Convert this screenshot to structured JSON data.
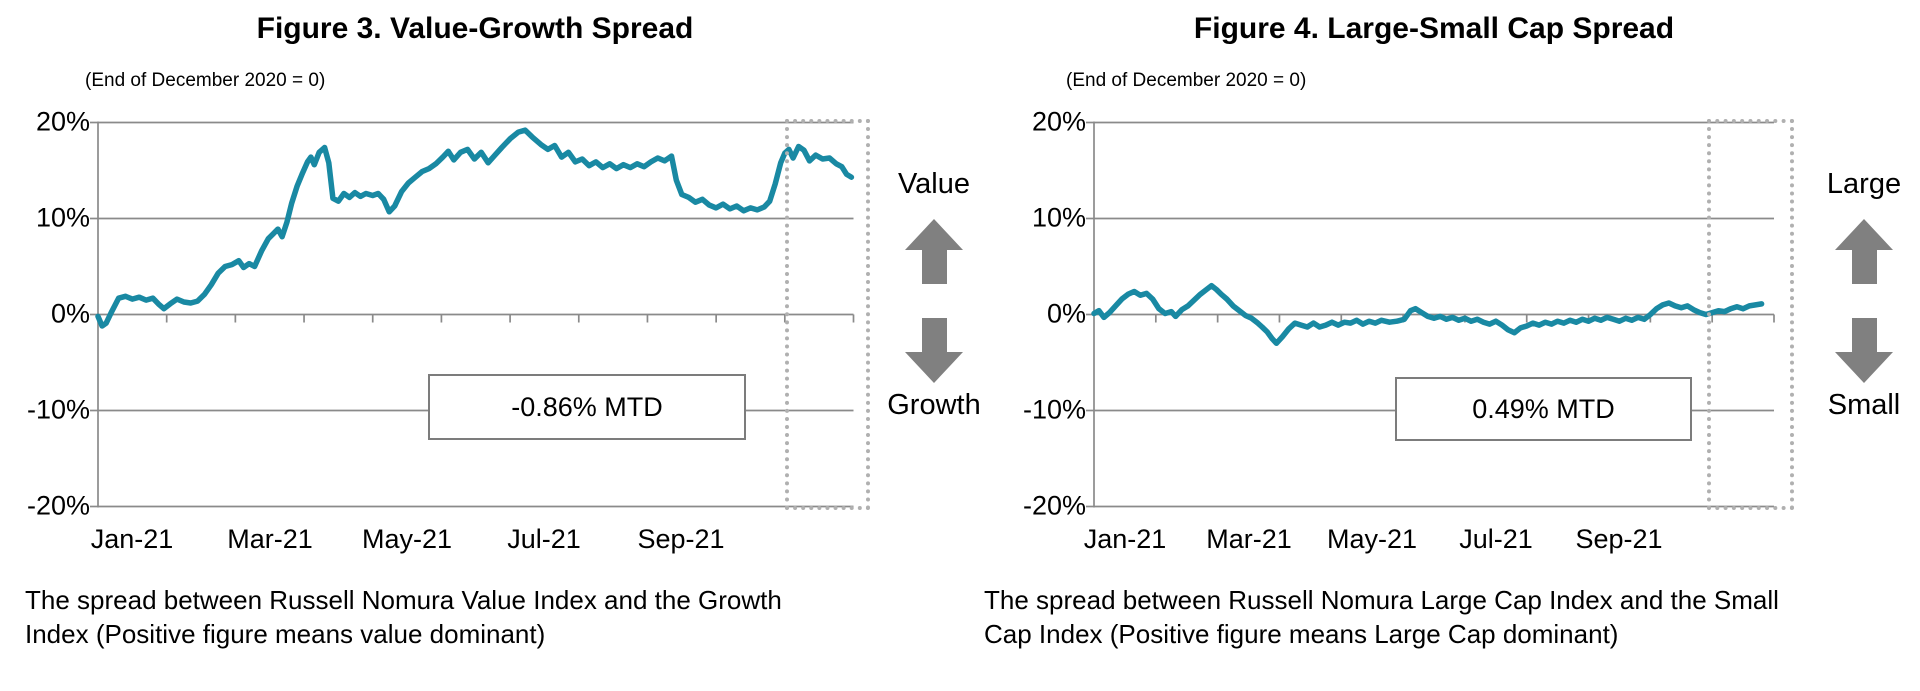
{
  "figures": [
    {
      "title": "Figure 3. Value-Growth Spread",
      "subtitle": "(End of December 2020 = 0)",
      "y_labels": [
        "20%",
        "10%",
        "0%",
        "-10%",
        "-20%"
      ],
      "x_labels": [
        "Jan-21",
        "Mar-21",
        "May-21",
        "Jul-21",
        "Sep-21"
      ],
      "annotation": "-0.86% MTD",
      "side_top_label": "Value",
      "side_bottom_label": "Growth",
      "caption_lines": [
        "The spread between Russell Nomura Value Index and the Growth",
        "Index (Positive figure means value dominant)"
      ]
    },
    {
      "title": "Figure 4. Large-Small Cap Spread",
      "subtitle": "(End of December 2020 = 0)",
      "y_labels": [
        "20%",
        "10%",
        "0%",
        "-10%",
        "-20%"
      ],
      "x_labels": [
        "Jan-21",
        "Mar-21",
        "May-21",
        "Jul-21",
        "Sep-21"
      ],
      "annotation": "0.49% MTD",
      "side_top_label": "Large",
      "side_bottom_label": "Small",
      "caption_lines": [
        "The spread between Russell Nomura Large Cap Index and the Small",
        "Cap Index (Positive figure means Large Cap dominant)"
      ]
    }
  ],
  "colors": {
    "line": "#1989a3",
    "grid": "#8a8a8a",
    "axis": "#8a8a8a",
    "arrow": "#808080",
    "dotted_box": "#b0b0b0",
    "annotation_border": "#7c7c7c",
    "text": "#000000"
  },
  "chart_data": [
    {
      "type": "line",
      "title": "Figure 3. Value-Growth Spread",
      "subtitle": "(End of December 2020 = 0)",
      "xlabel": "",
      "ylabel": "",
      "x_unit": "months since 2021-01-01",
      "x_tick_labels": [
        "Jan-21",
        "Mar-21",
        "May-21",
        "Jul-21",
        "Sep-21"
      ],
      "xlim": [
        0,
        11
      ],
      "ylim": [
        -20,
        20
      ],
      "y_ticks_pct": [
        20,
        10,
        0,
        -10,
        -20
      ],
      "grid": "horizontal",
      "legend": "none",
      "annotation": "-0.86% MTD",
      "highlight_region_months": [
        10.0,
        11.2
      ],
      "series": [
        {
          "name": "Value-Growth spread (%)",
          "points": [
            [
              0.0,
              -0.2
            ],
            [
              0.06,
              -1.2
            ],
            [
              0.12,
              -0.9
            ],
            [
              0.2,
              0.3
            ],
            [
              0.3,
              1.7
            ],
            [
              0.4,
              1.9
            ],
            [
              0.5,
              1.6
            ],
            [
              0.6,
              1.8
            ],
            [
              0.7,
              1.5
            ],
            [
              0.8,
              1.7
            ],
            [
              0.88,
              1.1
            ],
            [
              0.96,
              0.6
            ],
            [
              1.05,
              1.1
            ],
            [
              1.15,
              1.6
            ],
            [
              1.25,
              1.3
            ],
            [
              1.35,
              1.2
            ],
            [
              1.45,
              1.4
            ],
            [
              1.55,
              2.1
            ],
            [
              1.65,
              3.1
            ],
            [
              1.75,
              4.3
            ],
            [
              1.85,
              5.0
            ],
            [
              1.95,
              5.2
            ],
            [
              2.05,
              5.6
            ],
            [
              2.12,
              4.9
            ],
            [
              2.2,
              5.3
            ],
            [
              2.28,
              5.0
            ],
            [
              2.38,
              6.6
            ],
            [
              2.48,
              7.9
            ],
            [
              2.55,
              8.4
            ],
            [
              2.62,
              8.9
            ],
            [
              2.68,
              8.1
            ],
            [
              2.75,
              9.6
            ],
            [
              2.82,
              11.6
            ],
            [
              2.9,
              13.4
            ],
            [
              2.97,
              14.6
            ],
            [
              3.05,
              15.9
            ],
            [
              3.1,
              16.4
            ],
            [
              3.15,
              15.6
            ],
            [
              3.22,
              16.9
            ],
            [
              3.3,
              17.4
            ],
            [
              3.36,
              15.8
            ],
            [
              3.42,
              12.1
            ],
            [
              3.5,
              11.8
            ],
            [
              3.58,
              12.6
            ],
            [
              3.66,
              12.2
            ],
            [
              3.74,
              12.7
            ],
            [
              3.82,
              12.3
            ],
            [
              3.9,
              12.6
            ],
            [
              4.0,
              12.4
            ],
            [
              4.08,
              12.6
            ],
            [
              4.16,
              12.0
            ],
            [
              4.24,
              10.7
            ],
            [
              4.32,
              11.3
            ],
            [
              4.42,
              12.8
            ],
            [
              4.52,
              13.7
            ],
            [
              4.62,
              14.3
            ],
            [
              4.72,
              14.9
            ],
            [
              4.82,
              15.2
            ],
            [
              4.92,
              15.7
            ],
            [
              5.02,
              16.4
            ],
            [
              5.1,
              17.0
            ],
            [
              5.18,
              16.1
            ],
            [
              5.28,
              16.9
            ],
            [
              5.38,
              17.2
            ],
            [
              5.48,
              16.2
            ],
            [
              5.58,
              16.9
            ],
            [
              5.68,
              15.8
            ],
            [
              5.78,
              16.6
            ],
            [
              5.88,
              17.4
            ],
            [
              6.0,
              18.3
            ],
            [
              6.12,
              19.0
            ],
            [
              6.22,
              19.2
            ],
            [
              6.32,
              18.5
            ],
            [
              6.45,
              17.7
            ],
            [
              6.55,
              17.2
            ],
            [
              6.65,
              17.6
            ],
            [
              6.75,
              16.4
            ],
            [
              6.85,
              16.9
            ],
            [
              6.95,
              15.9
            ],
            [
              7.05,
              16.2
            ],
            [
              7.15,
              15.5
            ],
            [
              7.25,
              15.9
            ],
            [
              7.35,
              15.3
            ],
            [
              7.45,
              15.7
            ],
            [
              7.55,
              15.2
            ],
            [
              7.65,
              15.6
            ],
            [
              7.75,
              15.3
            ],
            [
              7.85,
              15.7
            ],
            [
              7.95,
              15.4
            ],
            [
              8.05,
              15.9
            ],
            [
              8.15,
              16.3
            ],
            [
              8.25,
              16.0
            ],
            [
              8.35,
              16.5
            ],
            [
              8.42,
              14.0
            ],
            [
              8.5,
              12.5
            ],
            [
              8.6,
              12.2
            ],
            [
              8.7,
              11.7
            ],
            [
              8.8,
              12.0
            ],
            [
              8.9,
              11.4
            ],
            [
              9.0,
              11.1
            ],
            [
              9.1,
              11.5
            ],
            [
              9.2,
              11.0
            ],
            [
              9.3,
              11.3
            ],
            [
              9.4,
              10.8
            ],
            [
              9.5,
              11.1
            ],
            [
              9.6,
              10.9
            ],
            [
              9.7,
              11.2
            ],
            [
              9.78,
              11.8
            ],
            [
              9.86,
              13.6
            ],
            [
              9.94,
              15.8
            ],
            [
              10.0,
              16.8
            ],
            [
              10.06,
              17.2
            ],
            [
              10.12,
              16.3
            ],
            [
              10.2,
              17.5
            ],
            [
              10.28,
              17.1
            ],
            [
              10.36,
              16.0
            ],
            [
              10.45,
              16.6
            ],
            [
              10.55,
              16.2
            ],
            [
              10.65,
              16.3
            ],
            [
              10.75,
              15.7
            ],
            [
              10.83,
              15.4
            ],
            [
              10.9,
              14.6
            ],
            [
              10.97,
              14.3
            ]
          ]
        }
      ]
    },
    {
      "type": "line",
      "title": "Figure 4. Large-Small Cap Spread",
      "subtitle": "(End of December 2020 = 0)",
      "xlabel": "",
      "ylabel": "",
      "x_unit": "months since 2021-01-01",
      "x_tick_labels": [
        "Jan-21",
        "Mar-21",
        "May-21",
        "Jul-21",
        "Sep-21"
      ],
      "xlim": [
        0,
        11
      ],
      "ylim": [
        -20,
        20
      ],
      "y_ticks_pct": [
        20,
        10,
        0,
        -10,
        -20
      ],
      "grid": "horizontal",
      "legend": "none",
      "annotation": "0.49% MTD",
      "highlight_region_months": [
        10.0,
        11.2
      ],
      "series": [
        {
          "name": "Large-Small Cap spread (%)",
          "points": [
            [
              0.0,
              0.1
            ],
            [
              0.08,
              0.4
            ],
            [
              0.16,
              -0.3
            ],
            [
              0.25,
              0.2
            ],
            [
              0.35,
              0.9
            ],
            [
              0.45,
              1.6
            ],
            [
              0.55,
              2.1
            ],
            [
              0.65,
              2.4
            ],
            [
              0.75,
              2.0
            ],
            [
              0.85,
              2.2
            ],
            [
              0.95,
              1.6
            ],
            [
              1.05,
              0.6
            ],
            [
              1.15,
              0.1
            ],
            [
              1.25,
              0.3
            ],
            [
              1.32,
              -0.2
            ],
            [
              1.42,
              0.5
            ],
            [
              1.52,
              0.9
            ],
            [
              1.62,
              1.5
            ],
            [
              1.72,
              2.1
            ],
            [
              1.82,
              2.6
            ],
            [
              1.9,
              3.0
            ],
            [
              1.98,
              2.6
            ],
            [
              2.06,
              2.1
            ],
            [
              2.15,
              1.6
            ],
            [
              2.25,
              0.9
            ],
            [
              2.35,
              0.4
            ],
            [
              2.45,
              -0.1
            ],
            [
              2.55,
              -0.4
            ],
            [
              2.65,
              -0.9
            ],
            [
              2.72,
              -1.3
            ],
            [
              2.8,
              -1.8
            ],
            [
              2.88,
              -2.5
            ],
            [
              2.95,
              -3.0
            ],
            [
              3.05,
              -2.3
            ],
            [
              3.15,
              -1.5
            ],
            [
              3.25,
              -0.9
            ],
            [
              3.35,
              -1.1
            ],
            [
              3.45,
              -1.3
            ],
            [
              3.55,
              -0.9
            ],
            [
              3.65,
              -1.3
            ],
            [
              3.75,
              -1.1
            ],
            [
              3.85,
              -0.8
            ],
            [
              3.95,
              -1.1
            ],
            [
              4.05,
              -0.8
            ],
            [
              4.15,
              -0.9
            ],
            [
              4.25,
              -0.6
            ],
            [
              4.35,
              -1.0
            ],
            [
              4.45,
              -0.7
            ],
            [
              4.55,
              -0.9
            ],
            [
              4.65,
              -0.6
            ],
            [
              4.78,
              -0.8
            ],
            [
              4.9,
              -0.7
            ],
            [
              5.02,
              -0.5
            ],
            [
              5.12,
              0.4
            ],
            [
              5.2,
              0.6
            ],
            [
              5.3,
              0.2
            ],
            [
              5.4,
              -0.2
            ],
            [
              5.5,
              -0.4
            ],
            [
              5.6,
              -0.2
            ],
            [
              5.7,
              -0.5
            ],
            [
              5.8,
              -0.3
            ],
            [
              5.9,
              -0.6
            ],
            [
              6.0,
              -0.4
            ],
            [
              6.1,
              -0.7
            ],
            [
              6.2,
              -0.5
            ],
            [
              6.3,
              -0.8
            ],
            [
              6.4,
              -1.0
            ],
            [
              6.5,
              -0.7
            ],
            [
              6.6,
              -1.1
            ],
            [
              6.7,
              -1.6
            ],
            [
              6.8,
              -1.9
            ],
            [
              6.9,
              -1.4
            ],
            [
              7.0,
              -1.2
            ],
            [
              7.1,
              -0.9
            ],
            [
              7.2,
              -1.1
            ],
            [
              7.3,
              -0.8
            ],
            [
              7.4,
              -1.0
            ],
            [
              7.5,
              -0.7
            ],
            [
              7.6,
              -0.9
            ],
            [
              7.7,
              -0.6
            ],
            [
              7.8,
              -0.8
            ],
            [
              7.9,
              -0.5
            ],
            [
              8.0,
              -0.7
            ],
            [
              8.1,
              -0.4
            ],
            [
              8.2,
              -0.6
            ],
            [
              8.3,
              -0.3
            ],
            [
              8.4,
              -0.5
            ],
            [
              8.5,
              -0.7
            ],
            [
              8.6,
              -0.4
            ],
            [
              8.7,
              -0.6
            ],
            [
              8.8,
              -0.3
            ],
            [
              8.9,
              -0.5
            ],
            [
              9.0,
              0.0
            ],
            [
              9.1,
              0.6
            ],
            [
              9.2,
              1.0
            ],
            [
              9.3,
              1.2
            ],
            [
              9.4,
              0.9
            ],
            [
              9.5,
              0.7
            ],
            [
              9.6,
              0.9
            ],
            [
              9.7,
              0.5
            ],
            [
              9.8,
              0.2
            ],
            [
              9.9,
              0.0
            ],
            [
              10.0,
              0.2
            ],
            [
              10.1,
              0.4
            ],
            [
              10.2,
              0.3
            ],
            [
              10.3,
              0.6
            ],
            [
              10.4,
              0.8
            ],
            [
              10.5,
              0.6
            ],
            [
              10.6,
              0.9
            ],
            [
              10.7,
              1.0
            ],
            [
              10.8,
              1.1
            ]
          ]
        }
      ]
    }
  ]
}
